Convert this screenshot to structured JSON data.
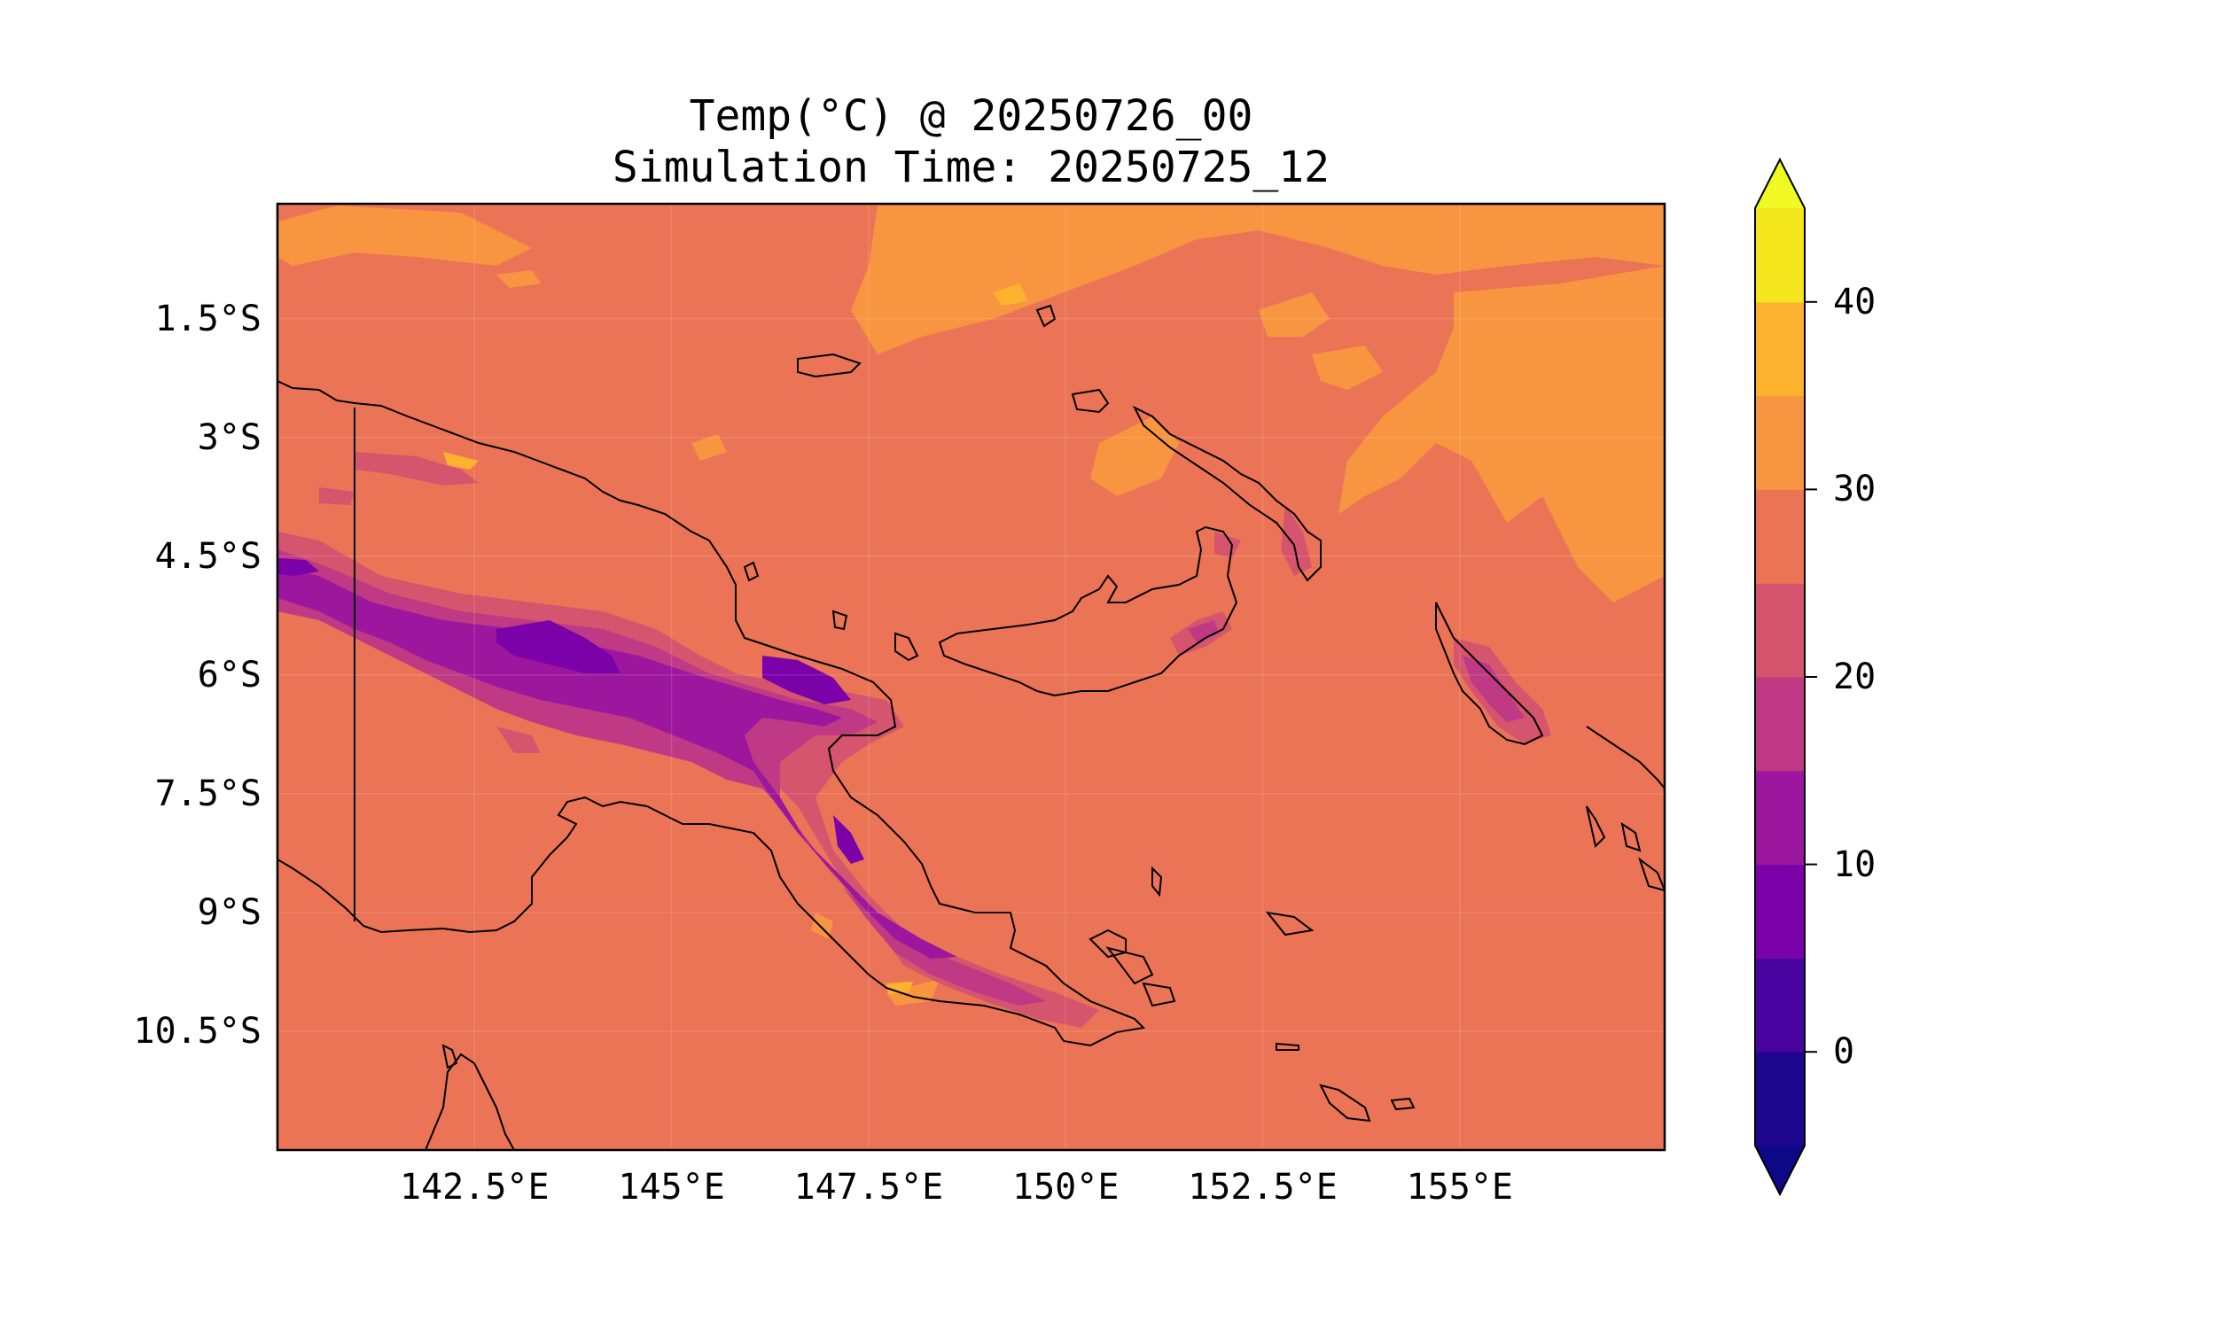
{
  "title": {
    "line1": "Temp(°C) @ 20250726_00",
    "line2": "Simulation Time: 20250725_12"
  },
  "map": {
    "lon_range": [
      140.0,
      157.6
    ],
    "lat_range": [
      -12.0,
      -0.05
    ],
    "lat_ticks": [
      {
        "value": -1.5,
        "label": "1.5°S"
      },
      {
        "value": -3.0,
        "label": "3°S"
      },
      {
        "value": -4.5,
        "label": "4.5°S"
      },
      {
        "value": -6.0,
        "label": "6°S"
      },
      {
        "value": -7.5,
        "label": "7.5°S"
      },
      {
        "value": -9.0,
        "label": "9°S"
      },
      {
        "value": -10.5,
        "label": "10.5°S"
      }
    ],
    "lon_ticks": [
      {
        "value": 142.5,
        "label": "142.5°E"
      },
      {
        "value": 145.0,
        "label": "145°E"
      },
      {
        "value": 147.5,
        "label": "147.5°E"
      },
      {
        "value": 150.0,
        "label": "150°E"
      },
      {
        "value": 152.5,
        "label": "152.5°E"
      },
      {
        "value": 155.0,
        "label": "155°E"
      }
    ],
    "background_color": "#eb7456"
  },
  "colorbar": {
    "min": -5,
    "max": 45,
    "step": 5,
    "extend": "both",
    "colors": [
      "#1b068d",
      "#4903a0",
      "#7a02a8",
      "#9c179e",
      "#bf3984",
      "#d5546e",
      "#eb7456",
      "#f89540",
      "#fdb32f",
      "#f4e61d"
    ],
    "under_color": "#0d0887",
    "over_color": "#f0f921",
    "ticks": [
      {
        "value": 0,
        "label": "0"
      },
      {
        "value": 10,
        "label": "10"
      },
      {
        "value": 20,
        "label": "20"
      },
      {
        "value": 30,
        "label": "30"
      },
      {
        "value": 40,
        "label": "40"
      }
    ]
  }
}
